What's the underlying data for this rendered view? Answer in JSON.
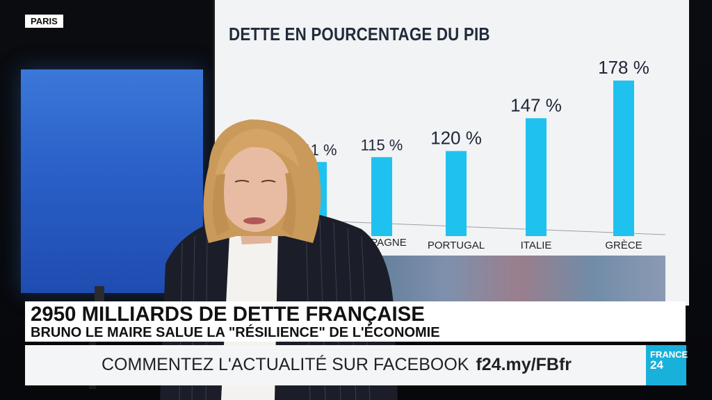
{
  "location": "PARIS",
  "headline": "2950 MILLIARDS DE DETTE FRANÇAISE",
  "subheadline": "BRUNO LE MAIRE SALUE LA \"RÉSILIENCE\" DE L'ÉCONOMIE",
  "ticker": {
    "text": "COMMENTEZ L'ACTUALITÉ SUR FACEBOOK",
    "link": "f24.my/FBfr"
  },
  "logo": {
    "line1": "FRANCE",
    "line2": "24"
  },
  "colors": {
    "bar": "#1fc2ee",
    "screen_bg": "#f2f3f5",
    "logo": "#19b1dc",
    "blue_panel": "#2f6bd2"
  },
  "chart_data": {
    "type": "bar",
    "title": "DETTE EN POURCENTAGE DU PIB",
    "categories": [
      "",
      "ESPAGNE",
      "PORTUGAL",
      "ITALIE",
      "GRÈCE"
    ],
    "values": [
      111,
      115,
      120,
      147,
      178
    ],
    "value_labels": [
      "111 %",
      "115 %",
      "120 %",
      "147 %",
      "178 %"
    ],
    "grid": false
  }
}
